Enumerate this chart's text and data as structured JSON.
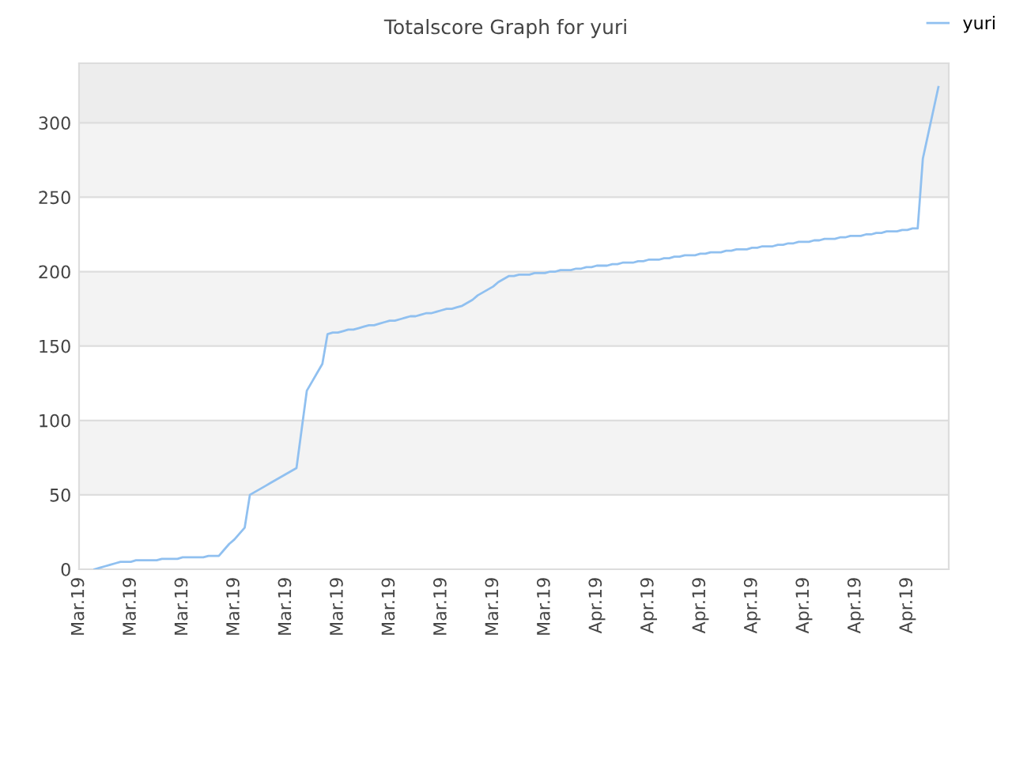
{
  "chart_data": {
    "type": "line",
    "title": "Totalscore Graph for yuri",
    "categories": [
      "Mar.19",
      null,
      null,
      null,
      null,
      null,
      null,
      null,
      null,
      null,
      "Mar.19",
      null,
      null,
      null,
      null,
      null,
      null,
      null,
      null,
      null,
      "Mar.19",
      null,
      null,
      null,
      null,
      null,
      null,
      null,
      null,
      null,
      "Mar.19",
      null,
      null,
      null,
      null,
      null,
      null,
      null,
      null,
      null,
      "Mar.19",
      null,
      null,
      null,
      null,
      null,
      null,
      null,
      null,
      null,
      "Mar.19",
      null,
      null,
      null,
      null,
      null,
      null,
      null,
      null,
      null,
      "Mar.19",
      null,
      null,
      null,
      null,
      null,
      null,
      null,
      null,
      null,
      "Mar.19",
      null,
      null,
      null,
      null,
      null,
      null,
      null,
      null,
      null,
      "Mar.19",
      null,
      null,
      null,
      null,
      null,
      null,
      null,
      null,
      null,
      "Mar.19",
      null,
      null,
      null,
      null,
      null,
      null,
      null,
      null,
      null,
      "Apr.19",
      null,
      null,
      null,
      null,
      null,
      null,
      null,
      null,
      null,
      "Apr.19",
      null,
      null,
      null,
      null,
      null,
      null,
      null,
      null,
      null,
      "Apr.19",
      null,
      null,
      null,
      null,
      null,
      null,
      null,
      null,
      null,
      "Apr.19",
      null,
      null,
      null,
      null,
      null,
      null,
      null,
      null,
      null,
      "Apr.19",
      null,
      null,
      null,
      null,
      null,
      null,
      null,
      null,
      null,
      "Apr.19",
      null,
      null,
      null,
      null,
      null,
      null,
      null,
      null,
      null,
      "Apr.19",
      null,
      null,
      null,
      null,
      null,
      null,
      null,
      null
    ],
    "series": [
      {
        "name": "yuri",
        "color": "#90c0f0",
        "values": [
          null,
          null,
          null,
          0,
          1,
          2,
          3,
          4,
          5,
          5,
          5,
          6,
          6,
          6,
          6,
          6,
          7,
          7,
          7,
          7,
          8,
          8,
          8,
          8,
          8,
          9,
          9,
          9,
          13,
          17,
          20,
          24,
          28,
          50,
          52,
          54,
          56,
          58,
          60,
          62,
          64,
          66,
          68,
          94,
          120,
          126,
          132,
          138,
          158,
          159,
          159,
          160,
          161,
          161,
          162,
          163,
          164,
          164,
          165,
          166,
          167,
          167,
          168,
          169,
          170,
          170,
          171,
          172,
          172,
          173,
          174,
          175,
          175,
          176,
          177,
          179,
          181,
          184,
          186,
          188,
          190,
          193,
          195,
          197,
          197,
          198,
          198,
          198,
          199,
          199,
          199,
          200,
          200,
          201,
          201,
          201,
          202,
          202,
          203,
          203,
          204,
          204,
          204,
          205,
          205,
          206,
          206,
          206,
          207,
          207,
          208,
          208,
          208,
          209,
          209,
          210,
          210,
          211,
          211,
          211,
          212,
          212,
          213,
          213,
          213,
          214,
          214,
          215,
          215,
          215,
          216,
          216,
          217,
          217,
          217,
          218,
          218,
          219,
          219,
          220,
          220,
          220,
          221,
          221,
          222,
          222,
          222,
          223,
          223,
          224,
          224,
          224,
          225,
          225,
          226,
          226,
          227,
          227,
          227,
          228,
          228,
          229,
          229,
          276,
          292,
          308,
          324,
          null,
          null
        ]
      }
    ],
    "ylim": [
      0,
      340
    ],
    "yticks": [
      0,
      50,
      100,
      150,
      200,
      250,
      300
    ],
    "bands": [
      {
        "axis": "y",
        "from": 50,
        "to": 100,
        "color": "#f3f3f3"
      },
      {
        "axis": "y",
        "from": 150,
        "to": 200,
        "color": "#f3f3f3"
      },
      {
        "axis": "y",
        "from": 250,
        "to": 300,
        "color": "#f3f3f3"
      },
      {
        "axis": "y",
        "from": 300,
        "to": 340,
        "color": "#ededed"
      }
    ],
    "grid": "y",
    "legend": "top right",
    "marker": "none",
    "line_style": "solid"
  }
}
